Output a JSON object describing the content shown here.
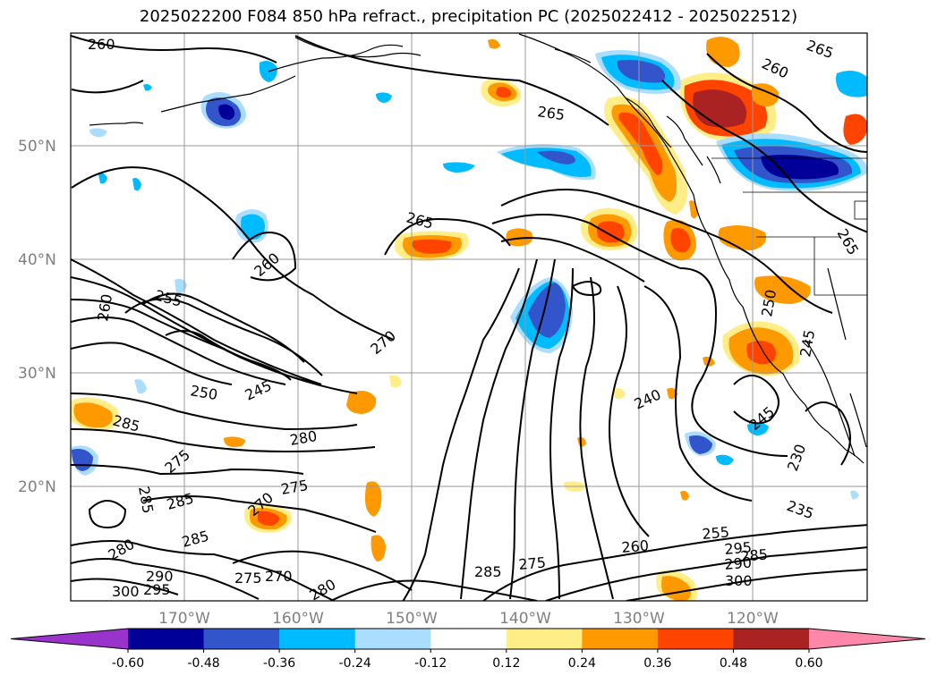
{
  "title": "2025022200 F084 850 hPa refract., precipitation PC (2025022412 - 2025022512)",
  "lat_labels": [
    "50°N",
    "40°N",
    "30°N",
    "20°N"
  ],
  "lon_labels": [
    "170°W",
    "160°W",
    "150°W",
    "140°W",
    "130°W",
    "120°W"
  ],
  "contour_labels": [
    "260",
    "265",
    "260",
    "265",
    "265",
    "260",
    "260",
    "255",
    "270",
    "250",
    "245",
    "285",
    "280",
    "275",
    "285",
    "270",
    "275",
    "285",
    "285",
    "280",
    "300",
    "295",
    "290",
    "275",
    "270",
    "285",
    "275",
    "260",
    "255",
    "240",
    "245",
    "230",
    "235",
    "295",
    "290",
    "285",
    "300",
    "250",
    "245",
    "265",
    "280"
  ],
  "colorbar": {
    "ticks": [
      "-0.60",
      "-0.48",
      "-0.36",
      "-0.24",
      "-0.12",
      "0.12",
      "0.24",
      "0.36",
      "0.48",
      "0.60"
    ],
    "colors": [
      "#9933cc",
      "#000099",
      "#3355cc",
      "#00bbff",
      "#aaddff",
      "#ffffff",
      "#ffee88",
      "#ff9900",
      "#ff4400",
      "#aa2222",
      "#ff88aa"
    ]
  },
  "field_colors": {
    "pos1": "#ffee88",
    "pos2": "#ff9900",
    "pos3": "#ff4400",
    "pos4": "#aa2222",
    "neg1": "#aaddff",
    "neg2": "#00bbff",
    "neg3": "#3355cc",
    "neg4": "#000099"
  }
}
